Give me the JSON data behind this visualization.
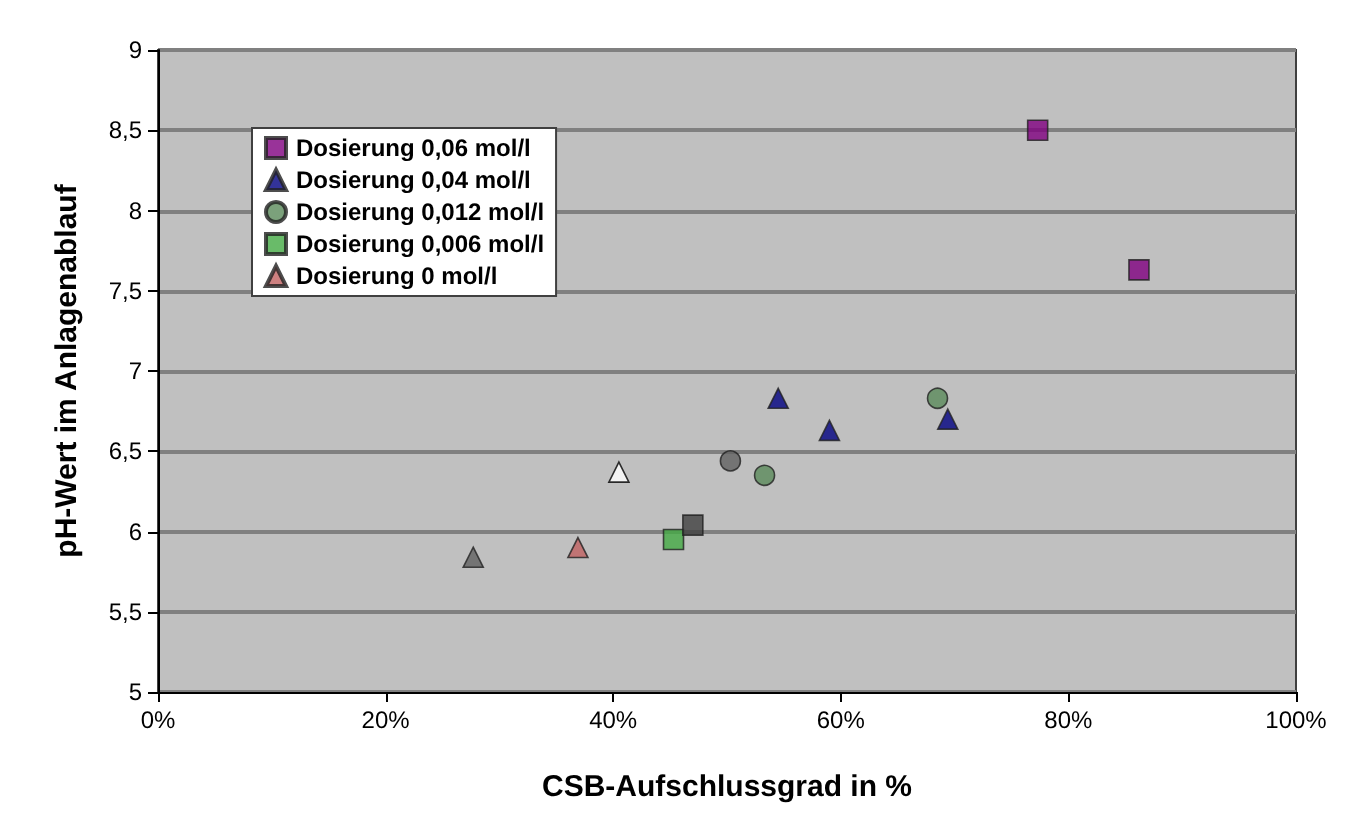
{
  "chart_data": {
    "type": "scatter",
    "xlabel": "CSB-Aufschlussgrad in %",
    "ylabel": "pH-Wert im Anlagenablauf",
    "xlim": [
      0,
      100
    ],
    "xticks": [
      {
        "value": 0,
        "label": "0%"
      },
      {
        "value": 20,
        "label": "20%"
      },
      {
        "value": 40,
        "label": "40%"
      },
      {
        "value": 60,
        "label": "60%"
      },
      {
        "value": 80,
        "label": "80%"
      },
      {
        "value": 100,
        "label": "100%"
      }
    ],
    "ylim": [
      5,
      9
    ],
    "yticks": [
      5,
      {
        "value": 5.5,
        "label": "5,5"
      },
      6,
      {
        "value": 6.5,
        "label": "6,5"
      },
      7,
      {
        "value": 7.5,
        "label": "7,5"
      },
      8,
      {
        "value": 8.5,
        "label": "8,5"
      },
      9
    ],
    "grid": "y",
    "legend": "top left",
    "series": [
      {
        "name": "Dosierung 0,06 mol/l",
        "color": "#800080",
        "marker": "square",
        "x": [
          77.3,
          86.2
        ],
        "values": [
          8.5,
          7.63
        ]
      },
      {
        "name": "Dosierung 0,04 mol/l",
        "color": "#000080",
        "marker": "triangle",
        "x": [
          54.5,
          59,
          69.4
        ],
        "values": [
          6.83,
          6.63,
          6.7
        ]
      },
      {
        "name": "Dosierung 0,012 mol/l",
        "color": "#5a8a5a",
        "marker": "circle",
        "x": [
          68.5,
          53.3
        ],
        "values": [
          6.83,
          6.35
        ]
      },
      {
        "name": "Dosierung 0,006 mol/l",
        "color": "#44aa44",
        "marker": "square",
        "x": [
          45.3
        ],
        "values": [
          5.95
        ]
      },
      {
        "name": "Dosierung 0 mol/l",
        "color": "#c06060",
        "marker": "triangle",
        "x": [
          36.9
        ],
        "values": [
          5.9
        ]
      },
      {
        "color": "#606060",
        "marker": "triangle",
        "x": [
          27.7
        ],
        "values": [
          5.84
        ]
      },
      {
        "color": "#ffffff",
        "marker": "triangle",
        "x": [
          40.5
        ],
        "values": [
          6.37
        ]
      },
      {
        "color": "#606060",
        "marker": "circle",
        "x": [
          50.3
        ],
        "values": [
          6.44
        ]
      },
      {
        "color": "#404040",
        "marker": "square",
        "x": [
          47
        ],
        "values": [
          6.04
        ]
      }
    ]
  }
}
